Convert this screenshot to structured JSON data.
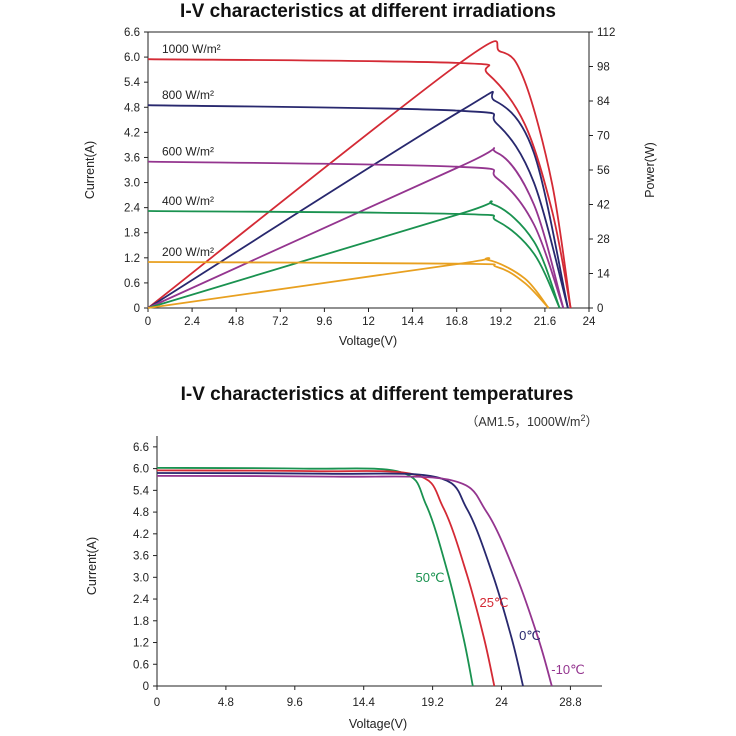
{
  "chart_data": [
    {
      "type": "line",
      "title": "I-V characteristics at different irradiations",
      "xlabel": "Voltage(V)",
      "ylabel": "Current(A)",
      "y2label": "Power(W)",
      "xlim": [
        0,
        24
      ],
      "ylim": [
        0,
        6.6
      ],
      "y2lim": [
        0,
        112
      ],
      "x_ticks": [
        "0",
        "2.4",
        "4.8",
        "7.2",
        "9.6",
        "12",
        "14.4",
        "16.8",
        "19.2",
        "21.6",
        "24"
      ],
      "y_ticks": [
        "0",
        "0.6",
        "1.2",
        "1.8",
        "2.4",
        "3.0",
        "3.6",
        "4.2",
        "4.8",
        "5.4",
        "6.0",
        "6.6"
      ],
      "y2_ticks": [
        "0",
        "14",
        "28",
        "42",
        "56",
        "70",
        "84",
        "98",
        "112"
      ],
      "series": [
        {
          "name": "1000 W/m²",
          "color": "#d42a35",
          "isc": 5.95,
          "voc": 23.0,
          "points_iv": [
            [
              0,
              5.95
            ],
            [
              16.8,
              5.86
            ],
            [
              18.5,
              5.6
            ],
            [
              20.5,
              4.4
            ],
            [
              22.0,
              2.3
            ],
            [
              23.0,
              0
            ]
          ],
          "points_pv": [
            [
              0,
              0
            ],
            [
              16.8,
              98.5
            ],
            [
              19.2,
              104
            ],
            [
              20.5,
              92
            ],
            [
              22.0,
              50
            ],
            [
              23.0,
              0
            ]
          ]
        },
        {
          "name": "800 W/m²",
          "color": "#28286e",
          "isc": 4.85,
          "voc": 22.85,
          "points_iv": [
            [
              0,
              4.85
            ],
            [
              16.8,
              4.72
            ],
            [
              19.0,
              4.4
            ],
            [
              21.0,
              3.0
            ],
            [
              22.85,
              0
            ]
          ],
          "points_pv": [
            [
              0,
              0
            ],
            [
              16.8,
              79
            ],
            [
              18.9,
              84
            ],
            [
              21.0,
              63
            ],
            [
              22.85,
              0
            ]
          ]
        },
        {
          "name": "600 W/m²",
          "color": "#94358f",
          "isc": 3.5,
          "voc": 22.6,
          "points_iv": [
            [
              0,
              3.5
            ],
            [
              16.8,
              3.38
            ],
            [
              19.0,
              3.1
            ],
            [
              21.0,
              2.0
            ],
            [
              22.6,
              0
            ]
          ],
          "points_pv": [
            [
              0,
              0
            ],
            [
              16.8,
              56.8
            ],
            [
              19.0,
              63
            ],
            [
              21.0,
              42
            ],
            [
              22.6,
              0
            ]
          ]
        },
        {
          "name": "400 W/m²",
          "color": "#1a9250",
          "isc": 2.32,
          "voc": 22.4,
          "points_iv": [
            [
              0,
              2.32
            ],
            [
              16.8,
              2.25
            ],
            [
              19.0,
              2.08
            ],
            [
              21.0,
              1.3
            ],
            [
              22.4,
              0
            ]
          ],
          "points_pv": [
            [
              0,
              0
            ],
            [
              16.8,
              37.8
            ],
            [
              18.8,
              42
            ],
            [
              21.0,
              27
            ],
            [
              22.4,
              0
            ]
          ]
        },
        {
          "name": "200 W/m²",
          "color": "#e8a020",
          "isc": 1.1,
          "voc": 21.8,
          "points_iv": [
            [
              0,
              1.1
            ],
            [
              16.8,
              1.06
            ],
            [
              19.0,
              0.98
            ],
            [
              20.5,
              0.6
            ],
            [
              21.8,
              0
            ]
          ],
          "points_pv": [
            [
              0,
              0
            ],
            [
              16.8,
              17.8
            ],
            [
              18.5,
              19.5
            ],
            [
              20.5,
              12
            ],
            [
              21.8,
              0
            ]
          ]
        }
      ]
    },
    {
      "type": "line",
      "title": "I-V characteristics at different temperatures",
      "subtitle_parts": [
        "（AM1.5，1000W/m",
        "2",
        "）"
      ],
      "xlabel": "Voltage(V)",
      "ylabel": "Current(A)",
      "xlim": [
        0,
        31
      ],
      "ylim": [
        0,
        6.9
      ],
      "x_ticks": [
        {
          "v": 0,
          "t": "0"
        },
        {
          "v": 4.8,
          "t": "4.8"
        },
        {
          "v": 9.6,
          "t": "9.6"
        },
        {
          "v": 14.4,
          "t": "14.4"
        },
        {
          "v": 19.2,
          "t": "19.2"
        },
        {
          "v": 24,
          "t": "24"
        },
        {
          "v": 28.8,
          "t": "28.8"
        }
      ],
      "y_ticks": [
        "0",
        "0.6",
        "1.2",
        "1.8",
        "2.4",
        "3.0",
        "3.6",
        "4.2",
        "4.8",
        "5.4",
        "6.0",
        "6.6"
      ],
      "series": [
        {
          "name": "50℃",
          "color": "#1a9250",
          "isc": 6.02,
          "voc": 22.0,
          "knee": 17.0
        },
        {
          "name": "25℃",
          "color": "#d42a35",
          "isc": 5.95,
          "voc": 23.5,
          "knee": 18.0
        },
        {
          "name": "0℃",
          "color": "#28286e",
          "isc": 5.88,
          "voc": 25.5,
          "knee": 19.5
        },
        {
          "name": "-10℃",
          "color": "#94358f",
          "isc": 5.8,
          "voc": 27.5,
          "knee": 20.5
        }
      ]
    }
  ]
}
